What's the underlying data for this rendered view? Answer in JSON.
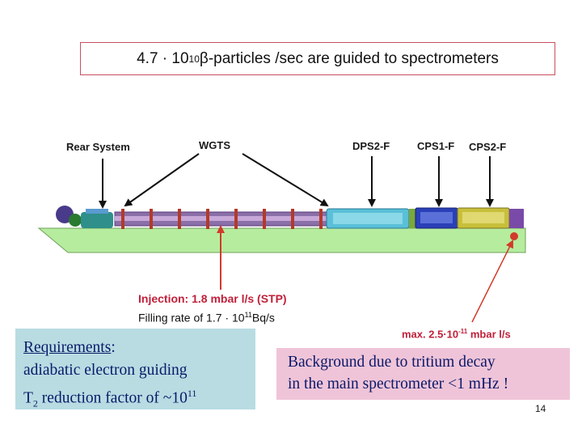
{
  "title": {
    "prefix": "4.7 · 10",
    "exponent": "10",
    "suffix": " β-particles /sec are guided to spectrometers"
  },
  "diagram_labels": {
    "rear_system": "Rear System",
    "wgts": "WGTS",
    "dps2f": "DPS2-F",
    "cps1f": "CPS1-F",
    "cps2f": "CPS2-F"
  },
  "injection": "Injection: 1.8 mbar l/s (STP)",
  "filling_rate": {
    "prefix": "Filling rate of 1.7 · 10",
    "exponent": "11",
    "suffix": "Bq/s"
  },
  "max_pumping": {
    "prefix": "max. 2.5·10",
    "exponent": "-11",
    "suffix": " mbar l/s"
  },
  "requirements": {
    "heading": "Requirements",
    "colon": ":",
    "line1": "adiabatic electron guiding",
    "line2_t": "T",
    "line2_sub": "2",
    "line2_text": " reduction factor of ~10",
    "line2_exp": "11"
  },
  "background": {
    "line1": "Background due to tritium decay",
    "line2": "in the main spectrometer <1 mHz !"
  },
  "page_number": "14",
  "colors": {
    "title_border": "#c8505f",
    "requirements_bg": "#b8dce2",
    "background_bg": "#f0c4d8",
    "highlight_red": "#c0203a",
    "platform_green": "#b6ec9e"
  }
}
